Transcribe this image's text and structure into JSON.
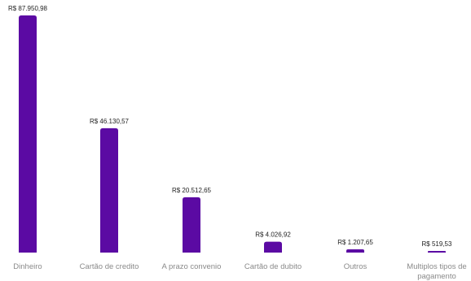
{
  "chart_data": {
    "type": "bar",
    "categories": [
      "Dinheiro",
      "Cartão de credito",
      "A prazo convenio",
      "Cartão de dubito",
      "Outros",
      "Multiplos tipos de pagamento"
    ],
    "category_lines": [
      [
        "Dinheiro"
      ],
      [
        "Cartão de credito"
      ],
      [
        "A prazo convenio"
      ],
      [
        "Cartão de dubito"
      ],
      [
        "Outros"
      ],
      [
        "Multiplos tipos de",
        "pagamento"
      ]
    ],
    "values": [
      87950.98,
      46130.57,
      20512.65,
      4026.92,
      1207.65,
      519.53
    ],
    "value_labels": [
      "R$ 87.950,98",
      "R$ 46.130,57",
      "R$ 20.512,65",
      "R$ 4.026,92",
      "R$ 1.207,65",
      "R$ 519,53"
    ],
    "ylim": [
      0,
      87950.98
    ],
    "grid": false,
    "bar_color": "#5b0aa3"
  }
}
